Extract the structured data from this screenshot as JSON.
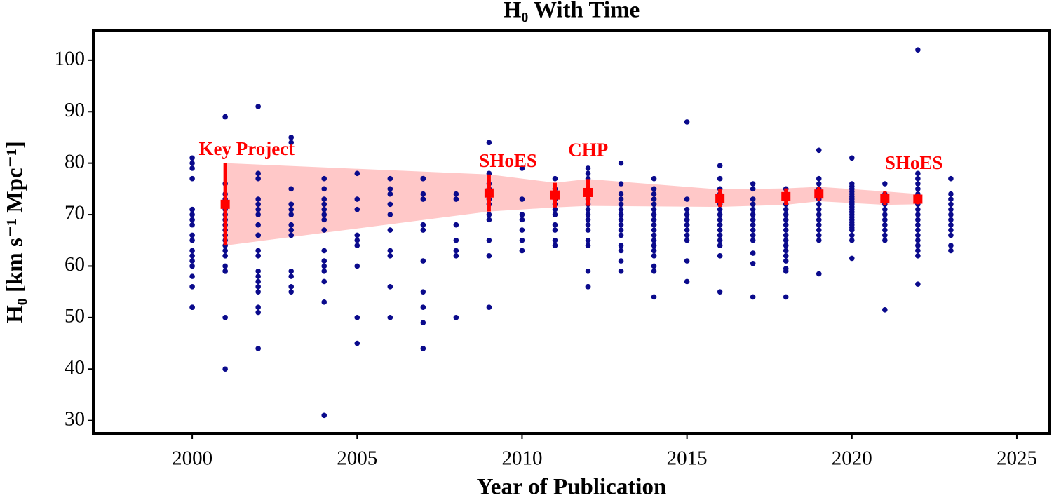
{
  "chart_data": {
    "type": "scatter",
    "title": "H₀ With Time",
    "x_label": "Year of Publication",
    "y_label": "H₀ [km s⁻¹ Mpc⁻¹]",
    "xlim": [
      1997,
      2026
    ],
    "ylim": [
      27.5,
      105.7
    ],
    "xticks": [
      2000,
      2005,
      2010,
      2015,
      2020,
      2025
    ],
    "yticks": [
      30,
      40,
      50,
      60,
      70,
      80,
      90,
      100
    ],
    "band_color": "#ffc8c8",
    "series": [
      {
        "color": "#0a0a8c",
        "x": [
          2000,
          2000,
          2000,
          2000,
          2000,
          2000,
          2000,
          2000,
          2000,
          2000,
          2000,
          2000,
          2000,
          2000,
          2000,
          2000,
          2000,
          2000,
          2000,
          2001,
          2001,
          2001,
          2001,
          2001,
          2001,
          2001,
          2001,
          2001,
          2001,
          2001,
          2001,
          2001,
          2001,
          2001,
          2001,
          2001,
          2001,
          2001,
          2001,
          2002,
          2002,
          2002,
          2002,
          2002,
          2002,
          2002,
          2002,
          2002,
          2002,
          2002,
          2002,
          2002,
          2002,
          2002,
          2002,
          2002,
          2002,
          2002,
          2002,
          2003,
          2003,
          2003,
          2003,
          2003,
          2003,
          2003,
          2003,
          2003,
          2003,
          2003,
          2003,
          2003,
          2003,
          2004,
          2004,
          2004,
          2004,
          2004,
          2004,
          2004,
          2004,
          2004,
          2004,
          2004,
          2004,
          2004,
          2004,
          2004,
          2005,
          2005,
          2005,
          2005,
          2005,
          2005,
          2005,
          2005,
          2005,
          2006,
          2006,
          2006,
          2006,
          2006,
          2006,
          2006,
          2006,
          2006,
          2006,
          2006,
          2007,
          2007,
          2007,
          2007,
          2007,
          2007,
          2007,
          2007,
          2007,
          2007,
          2007,
          2008,
          2008,
          2008,
          2008,
          2008,
          2008,
          2008,
          2009,
          2009,
          2009,
          2009,
          2009,
          2009,
          2009,
          2009,
          2009,
          2009,
          2009,
          2009,
          2010,
          2010,
          2010,
          2010,
          2010,
          2010,
          2010,
          2010,
          2011,
          2011,
          2011,
          2011,
          2011,
          2011,
          2011,
          2011,
          2011,
          2011,
          2011,
          2012,
          2012,
          2012,
          2012,
          2012,
          2012,
          2012,
          2012,
          2012,
          2012,
          2012,
          2012,
          2012,
          2012,
          2012,
          2012,
          2012,
          2013,
          2013,
          2013,
          2013,
          2013,
          2013,
          2013,
          2013,
          2013,
          2013,
          2013,
          2013,
          2013,
          2013,
          2013,
          2013,
          2013,
          2014,
          2014,
          2014,
          2014,
          2014,
          2014,
          2014,
          2014,
          2014,
          2014,
          2014,
          2014,
          2014,
          2014,
          2014,
          2014,
          2014,
          2014,
          2015,
          2015,
          2015,
          2015,
          2015,
          2015,
          2015,
          2015,
          2015,
          2015,
          2015,
          2015,
          2015,
          2016,
          2016,
          2016,
          2016,
          2016,
          2016,
          2016,
          2016,
          2016,
          2016,
          2016,
          2016,
          2016,
          2016,
          2016,
          2016,
          2017,
          2017,
          2017,
          2017,
          2017,
          2017,
          2017,
          2017,
          2017,
          2017,
          2017,
          2017,
          2017,
          2017,
          2018,
          2018,
          2018,
          2018,
          2018,
          2018,
          2018,
          2018,
          2018,
          2018,
          2018,
          2018,
          2018,
          2018,
          2018,
          2018,
          2018,
          2018,
          2019,
          2019,
          2019,
          2019,
          2019,
          2019,
          2019,
          2019,
          2019,
          2019,
          2019,
          2019,
          2019,
          2019,
          2019,
          2020,
          2020,
          2020,
          2020,
          2020,
          2020,
          2020,
          2020,
          2020,
          2020,
          2020,
          2020,
          2020,
          2020,
          2020,
          2020,
          2020,
          2020,
          2020,
          2020,
          2020,
          2020,
          2020,
          2021,
          2021,
          2021,
          2021,
          2021,
          2021,
          2021,
          2021,
          2021,
          2021,
          2021,
          2021,
          2022,
          2022,
          2022,
          2022,
          2022,
          2022,
          2022,
          2022,
          2022,
          2022,
          2022,
          2022,
          2022,
          2022,
          2022,
          2022,
          2022,
          2022,
          2022,
          2023,
          2023,
          2023,
          2023,
          2023,
          2023,
          2023,
          2023,
          2023,
          2023,
          2023,
          2023
        ],
        "values": [
          81,
          80,
          79,
          77,
          71,
          71,
          70,
          69,
          68,
          66,
          65,
          63,
          62,
          61,
          60,
          58,
          56,
          52,
          52,
          89,
          76,
          74,
          73,
          72,
          71,
          70,
          69,
          68,
          67,
          66,
          65,
          64,
          63,
          62,
          60,
          59,
          59,
          50,
          40,
          91,
          78,
          77,
          73,
          72,
          71,
          70,
          68,
          66,
          66,
          63,
          62,
          59,
          58,
          57,
          56,
          55,
          52,
          51,
          44,
          85,
          84,
          75,
          72,
          72,
          71,
          70,
          68,
          67,
          66,
          59,
          58,
          56,
          55,
          77,
          75,
          73,
          72,
          71,
          70,
          69,
          67,
          63,
          61,
          60,
          59,
          57,
          53,
          31,
          78,
          73,
          71,
          66,
          65,
          64,
          60,
          50,
          45,
          77,
          75,
          74,
          74,
          72,
          70,
          67,
          63,
          62,
          56,
          50,
          77,
          77,
          74,
          73,
          68,
          67,
          61,
          55,
          52,
          49,
          44,
          74,
          73,
          68,
          65,
          63,
          62,
          50,
          84,
          78,
          76,
          75,
          74,
          73,
          72,
          70,
          69,
          65,
          62,
          52,
          79,
          73,
          70,
          69,
          67,
          65,
          63,
          63,
          77,
          75,
          74,
          73,
          72,
          71,
          70,
          68,
          67,
          65,
          64,
          79,
          78,
          77,
          75,
          74,
          73,
          72,
          71,
          70,
          69,
          68,
          67,
          65,
          64,
          59,
          56,
          56,
          80,
          76,
          74,
          73,
          72,
          71,
          70,
          70,
          69,
          68,
          67,
          66,
          64,
          63,
          61,
          59,
          59,
          77,
          75,
          74,
          73,
          72,
          71,
          70,
          69,
          68,
          67,
          66,
          65,
          64,
          63,
          62,
          60,
          59,
          54,
          88,
          73,
          71,
          70,
          69,
          69,
          68,
          68,
          67,
          66,
          65,
          61,
          57,
          79.5,
          77,
          75,
          74,
          73,
          72,
          71,
          70,
          69,
          68,
          67,
          66,
          65,
          64,
          62,
          55,
          76,
          75,
          73,
          72,
          71,
          70,
          69,
          68,
          67,
          66,
          65,
          62.5,
          60.5,
          54,
          75,
          74,
          73,
          72,
          71,
          70,
          69,
          68,
          67,
          66,
          65,
          64,
          63,
          62,
          61,
          59.5,
          59,
          54,
          82.5,
          77,
          76,
          75,
          74,
          73,
          72,
          71,
          70,
          69,
          68,
          67,
          66,
          65,
          58.5,
          81,
          76,
          75.5,
          75,
          74.5,
          74,
          73.5,
          73,
          72.5,
          72,
          71.5,
          71,
          70.5,
          70,
          69.5,
          69,
          68.5,
          68,
          67.5,
          67,
          66,
          65,
          61.5,
          76,
          74,
          73,
          72,
          71,
          70,
          69,
          68,
          67,
          66,
          65,
          51.5,
          102,
          78,
          77,
          76,
          75,
          74,
          73,
          72,
          71,
          70,
          69,
          68,
          67,
          66,
          65,
          64,
          63,
          62,
          56.5,
          77,
          74,
          73,
          72,
          71,
          70,
          69,
          68,
          67,
          66,
          64,
          63
        ]
      },
      {
        "color": "#ff0000",
        "x": [
          2001,
          2009,
          2011,
          2012,
          2016,
          2018,
          2019,
          2021,
          2022
        ],
        "values": [
          72,
          74.2,
          73.8,
          74.3,
          73.2,
          73.5,
          74.0,
          73.2,
          73.0
        ],
        "errors": [
          8,
          3.6,
          2.4,
          2.6,
          1.7,
          1.6,
          1.4,
          1.3,
          1.0
        ]
      }
    ],
    "annotations": [
      {
        "text": "Key Project",
        "x": 2000.2,
        "y": 82.4
      },
      {
        "text": "SHoES",
        "x": 2008.7,
        "y": 80.1
      },
      {
        "text": "CHP",
        "x": 2011.4,
        "y": 82.2
      },
      {
        "text": "SHoES",
        "x": 2021.0,
        "y": 79.7
      }
    ]
  }
}
